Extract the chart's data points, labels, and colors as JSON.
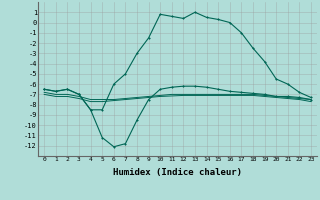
{
  "xlabel": "Humidex (Indice chaleur)",
  "x_ticks": [
    0,
    1,
    2,
    3,
    4,
    5,
    6,
    7,
    8,
    9,
    10,
    11,
    12,
    13,
    14,
    15,
    16,
    17,
    18,
    19,
    20,
    21,
    22,
    23
  ],
  "y_ticks": [
    1,
    0,
    -1,
    -2,
    -3,
    -4,
    -5,
    -6,
    -7,
    -8,
    -9,
    -10,
    -11,
    -12
  ],
  "ylim": [
    -13.0,
    2.0
  ],
  "xlim": [
    -0.5,
    23.5
  ],
  "bg_color": "#b0ddd8",
  "grid_color": "#999999",
  "line_color": "#006655",
  "upper_curve_x": [
    0,
    1,
    2,
    3,
    4,
    5,
    6,
    7,
    8,
    9,
    10,
    11,
    12,
    13,
    14,
    15,
    16,
    17,
    18,
    19,
    20,
    21,
    22,
    23
  ],
  "upper_curve_y": [
    -6.5,
    -6.7,
    -6.5,
    -7.0,
    -8.5,
    -8.5,
    -6.0,
    -5.0,
    -3.0,
    -1.5,
    0.8,
    0.6,
    0.4,
    1.0,
    0.5,
    0.3,
    0.0,
    -1.0,
    -2.5,
    -3.8,
    -5.5,
    -6.0,
    -6.8,
    -7.3
  ],
  "lower_dip_x": [
    0,
    1,
    2,
    3,
    4,
    5,
    6,
    7,
    8,
    9,
    10,
    11,
    12,
    13,
    14,
    15,
    16,
    17,
    18,
    19,
    20,
    21,
    22,
    23
  ],
  "lower_dip_y": [
    -6.5,
    -6.7,
    -6.5,
    -7.0,
    -8.5,
    -11.2,
    -12.1,
    -11.8,
    -9.5,
    -7.5,
    -6.5,
    -6.3,
    -6.2,
    -6.2,
    -6.3,
    -6.5,
    -6.7,
    -6.8,
    -6.9,
    -7.0,
    -7.2,
    -7.2,
    -7.3,
    -7.5
  ],
  "flat1_x": [
    0,
    1,
    2,
    3,
    4,
    5,
    6,
    7,
    8,
    9,
    10,
    11,
    12,
    13,
    14,
    15,
    16,
    17,
    18,
    19,
    20,
    21,
    22,
    23
  ],
  "flat1_y": [
    -6.8,
    -7.0,
    -7.0,
    -7.2,
    -7.5,
    -7.5,
    -7.5,
    -7.4,
    -7.3,
    -7.2,
    -7.1,
    -7.0,
    -7.0,
    -7.0,
    -7.0,
    -7.0,
    -7.0,
    -7.0,
    -7.0,
    -7.1,
    -7.2,
    -7.3,
    -7.4,
    -7.5
  ],
  "flat2_x": [
    0,
    1,
    2,
    3,
    4,
    5,
    6,
    7,
    8,
    9,
    10,
    11,
    12,
    13,
    14,
    15,
    16,
    17,
    18,
    19,
    20,
    21,
    22,
    23
  ],
  "flat2_y": [
    -7.0,
    -7.2,
    -7.2,
    -7.4,
    -7.7,
    -7.7,
    -7.6,
    -7.5,
    -7.4,
    -7.3,
    -7.2,
    -7.15,
    -7.1,
    -7.1,
    -7.1,
    -7.1,
    -7.1,
    -7.1,
    -7.1,
    -7.2,
    -7.3,
    -7.4,
    -7.5,
    -7.7
  ]
}
